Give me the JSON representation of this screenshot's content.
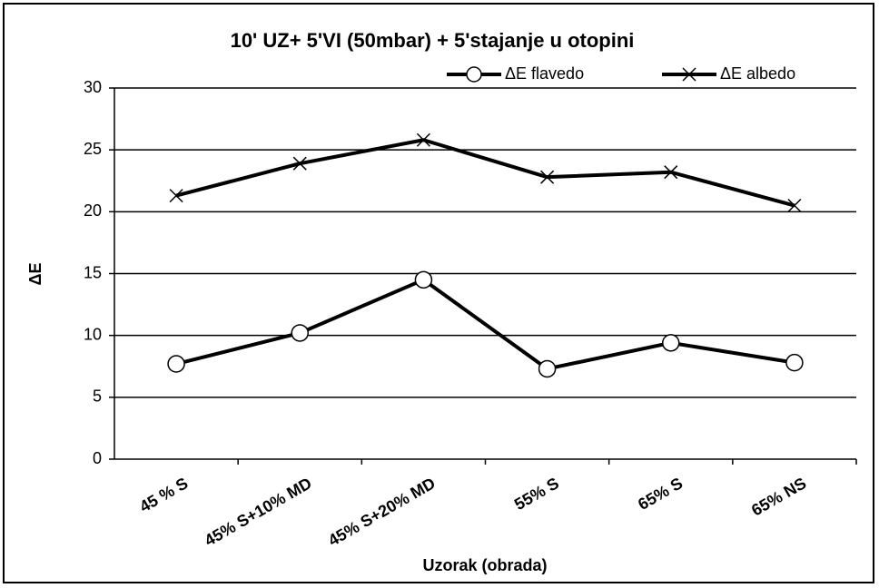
{
  "chart_data": {
    "type": "line",
    "title": "10' UZ+ 5'VI (50mbar) + 5'stajanje u otopini",
    "x_label": "Uzorak (obrada)",
    "y_label": "ΔE",
    "categories": [
      "45 % S",
      "45% S+10% MD",
      "45% S+20% MD",
      "55% S",
      "65% S",
      "65% NS"
    ],
    "series": [
      {
        "name": "ΔE flavedo",
        "color": "#000000",
        "marker": "circle",
        "values": [
          7.7,
          10.2,
          14.5,
          7.3,
          9.4,
          7.8
        ]
      },
      {
        "name": "ΔE albedo",
        "color": "#000000",
        "marker": "x",
        "values": [
          21.3,
          23.9,
          25.8,
          22.8,
          23.2,
          20.5
        ]
      }
    ],
    "ylim": [
      0,
      30
    ],
    "yticks": [
      0,
      5,
      10,
      15,
      20,
      25,
      30
    ],
    "grid": true,
    "legend": "top-right"
  }
}
